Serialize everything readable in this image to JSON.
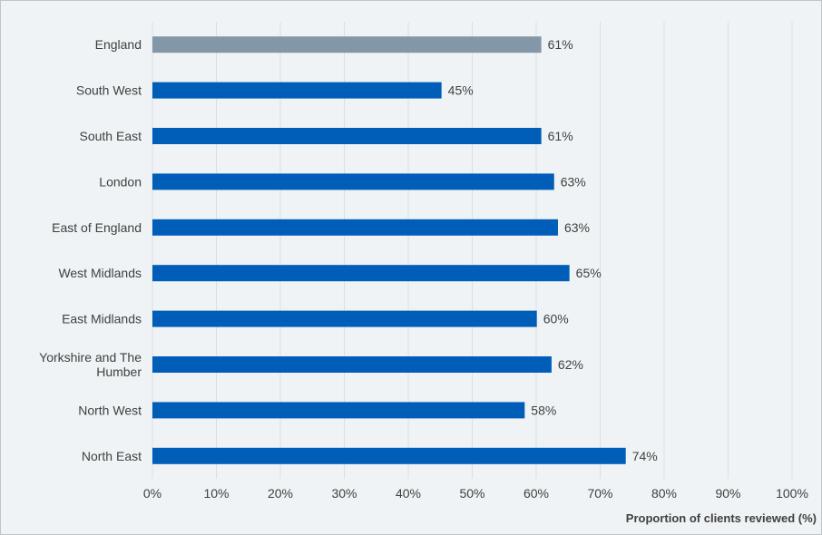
{
  "chart_data": {
    "type": "bar",
    "orientation": "horizontal",
    "categories": [
      "England",
      "South West",
      "South East",
      "London",
      "East of England",
      "West Midlands",
      "East Midlands",
      "Yorkshire and The Humber",
      "North West",
      "North East"
    ],
    "category_lines": [
      [
        "England"
      ],
      [
        "South West"
      ],
      [
        "South East"
      ],
      [
        "London"
      ],
      [
        "East of England"
      ],
      [
        "West Midlands"
      ],
      [
        "East Midlands"
      ],
      [
        "Yorkshire and The",
        "Humber"
      ],
      [
        "North West"
      ],
      [
        "North East"
      ]
    ],
    "values": [
      60.8,
      45.2,
      60.8,
      62.8,
      63.4,
      65.2,
      60.1,
      62.4,
      58.2,
      74.0
    ],
    "value_labels": [
      "61%",
      "45%",
      "61%",
      "63%",
      "63%",
      "65%",
      "60%",
      "62%",
      "58%",
      "74%"
    ],
    "xlabel": "Proportion of clients reviewed (%)",
    "ylabel": "",
    "xlim": [
      0,
      100
    ],
    "xticks": [
      0,
      10,
      20,
      30,
      40,
      50,
      60,
      70,
      80,
      90,
      100
    ],
    "xtick_labels": [
      "0%",
      "10%",
      "20%",
      "30%",
      "40%",
      "50%",
      "60%",
      "70%",
      "80%",
      "90%",
      "100%"
    ],
    "grid": true,
    "colors": {
      "highlight": "#8497a8",
      "bar": "#005eb8",
      "grid": "#dadfe2",
      "text": "#404040",
      "background": "#eff3f5"
    },
    "highlight_categories": [
      "England"
    ]
  }
}
